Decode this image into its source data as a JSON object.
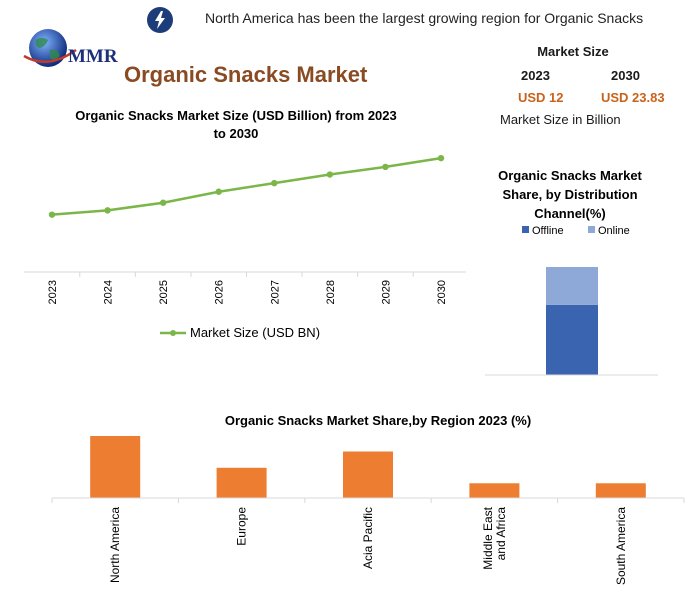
{
  "header": {
    "headline": "North America has been the largest growing region for Organic Snacks",
    "logo_text": "MMR",
    "title": "Organic Snacks Market"
  },
  "market_size": {
    "heading": "Market Size",
    "year_start": "2023",
    "year_end": "2030",
    "value_start": "USD 12",
    "value_end": "USD 23.83",
    "caption": "Market Size in Billion"
  },
  "colors": {
    "line": "#7ab648",
    "offline": "#3a64b0",
    "online": "#8ea8d8",
    "bar": "#ed7d31",
    "title_brown": "#8a4a22",
    "value_orange": "#c9621a"
  },
  "chart_data": [
    {
      "type": "line",
      "title": "Organic Snacks Market Size (USD Billion) from 2023 to 2030",
      "x": [
        "2023",
        "2024",
        "2025",
        "2026",
        "2027",
        "2028",
        "2029",
        "2030"
      ],
      "series": [
        {
          "name": "Market Size (USD BN)",
          "values": [
            12,
            12.9,
            14.5,
            16.8,
            18.6,
            20.4,
            22.0,
            23.83
          ]
        }
      ],
      "ylim": [
        0,
        36
      ],
      "grid": false,
      "legend": "bottom"
    },
    {
      "type": "bar",
      "stacked": true,
      "title": "Organic Snacks Market Share, by Distribution Channel(%)",
      "categories": [
        ""
      ],
      "series": [
        {
          "name": "Offline",
          "values": [
            65
          ]
        },
        {
          "name": "Online",
          "values": [
            35
          ]
        }
      ],
      "ylim": [
        0,
        100
      ],
      "legend": "top"
    },
    {
      "type": "bar",
      "title": "Organic Snacks Market Share,by Region 2023 (%)",
      "categories": [
        "North America",
        "Europe",
        "Acia Pacific",
        "Middle East and Africa",
        "South America"
      ],
      "category_lines": [
        [
          "North America"
        ],
        [
          "Europe"
        ],
        [
          "Acia Pacific"
        ],
        [
          "Middle East",
          "and Africa"
        ],
        [
          "South America"
        ]
      ],
      "values": [
        40,
        19.5,
        30,
        9.5,
        9.5
      ],
      "ylim": [
        0,
        40
      ]
    }
  ]
}
